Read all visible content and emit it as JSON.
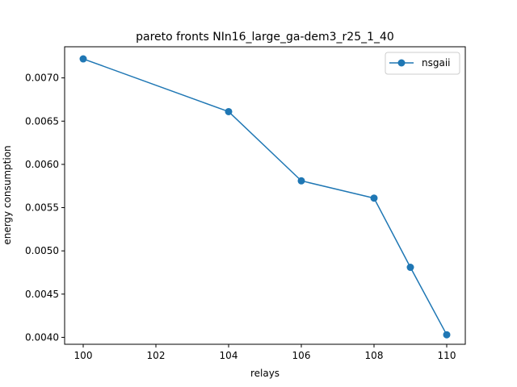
{
  "chart_data": {
    "type": "line",
    "title": "pareto fronts NIn16_large_ga-dem3_r25_1_40",
    "xlabel": "relays",
    "ylabel": "energy consumption",
    "x_categories": [
      "100",
      "102",
      "104",
      "106",
      "108",
      "110"
    ],
    "yticks": [
      "0.0040",
      "0.0045",
      "0.0050",
      "0.0055",
      "0.0060",
      "0.0065",
      "0.0070"
    ],
    "ylim": [
      0.00392,
      0.00736
    ],
    "series": [
      {
        "name": "nsgaii",
        "color": "#1f77b4",
        "marker": "circle",
        "points": [
          {
            "x": "100",
            "y": 0.00722
          },
          {
            "x": "104",
            "y": 0.00661
          },
          {
            "x": "106",
            "y": 0.00581
          },
          {
            "x": "108",
            "y": 0.00561
          },
          {
            "x": "109",
            "y": 0.00481
          },
          {
            "x": "110",
            "y": 0.00403
          }
        ]
      }
    ],
    "legend_position": "top-right",
    "grid": false
  }
}
